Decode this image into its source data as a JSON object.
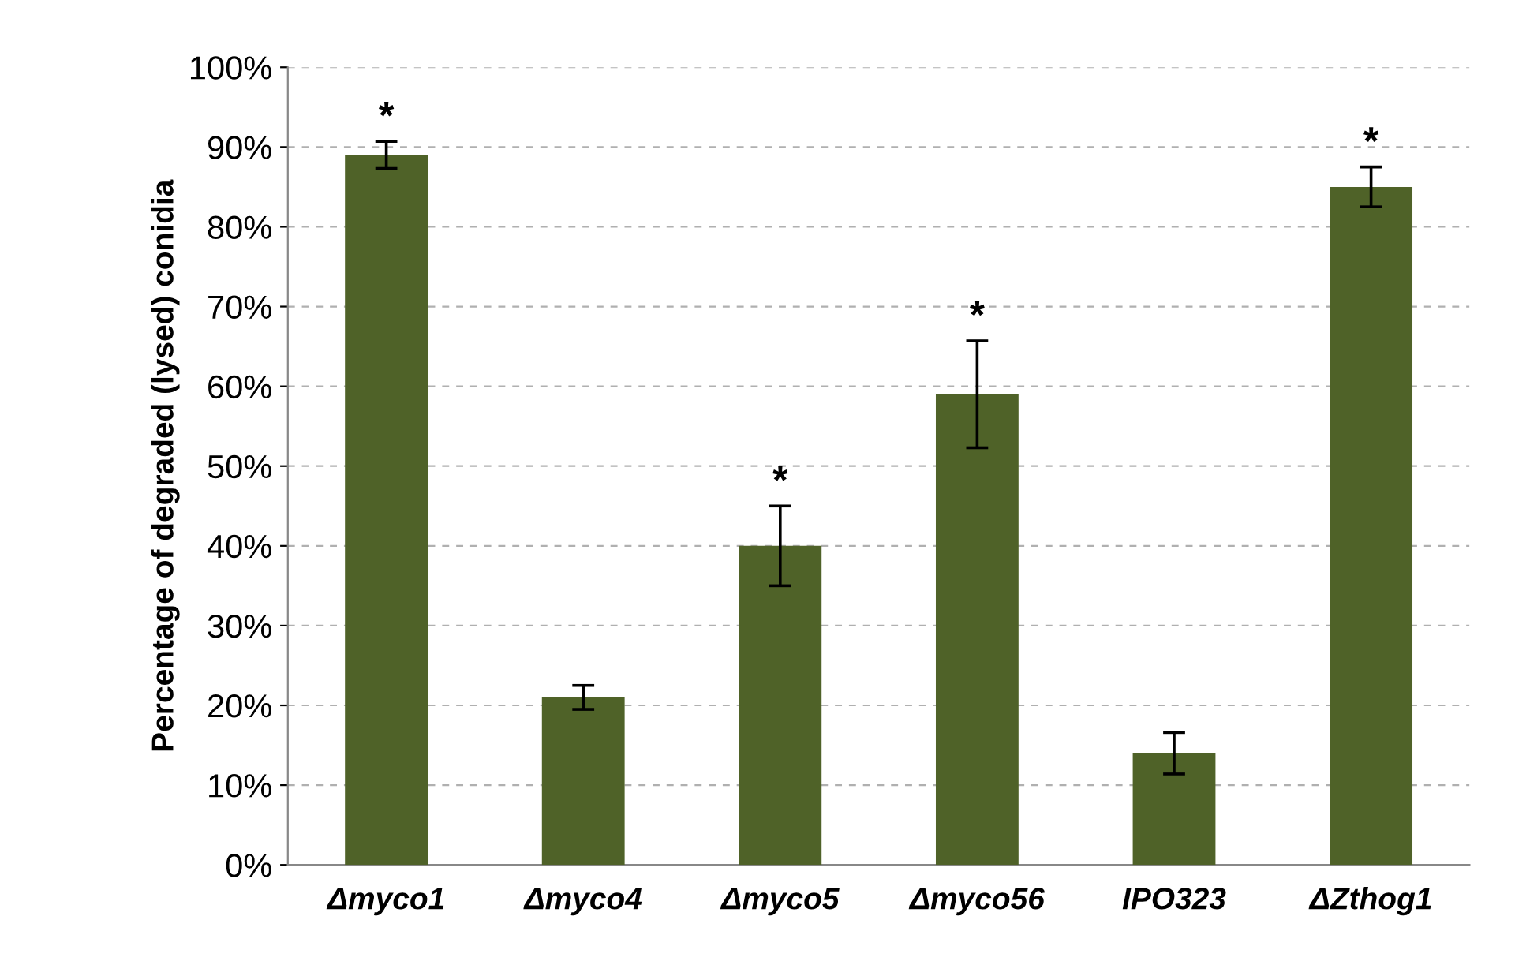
{
  "chart_data": {
    "type": "bar",
    "ylabel": "Percentage of degraded (lysed) conidia",
    "categories": [
      "Δmyco1",
      "Δmyco4",
      "Δmyco5",
      "Δmyco56",
      "IPO323",
      "ΔZthog1"
    ],
    "values": [
      89,
      21,
      40,
      59,
      14,
      85
    ],
    "errors": [
      1.7,
      1.5,
      5,
      6.7,
      2.6,
      2.5
    ],
    "color": "#4f6228",
    "ylim": [
      0,
      100
    ],
    "yticks": [
      {
        "value": 0,
        "label": "0%"
      },
      {
        "value": 10,
        "label": "10%"
      },
      {
        "value": 20,
        "label": "20%"
      },
      {
        "value": 30,
        "label": "30%"
      },
      {
        "value": 40,
        "label": "40%"
      },
      {
        "value": 50,
        "label": "50%"
      },
      {
        "value": 60,
        "label": "60%"
      },
      {
        "value": 70,
        "label": "70%"
      },
      {
        "value": 80,
        "label": "80%"
      },
      {
        "value": 90,
        "label": "90%"
      },
      {
        "value": 100,
        "label": "100%"
      }
    ],
    "grid": "y",
    "annotations": [
      {
        "text": "*",
        "x": "Δmyco1",
        "y": 90.7
      },
      {
        "text": "*",
        "x": "Δmyco5",
        "y": 45
      },
      {
        "text": "*",
        "x": "Δmyco56",
        "y": 65.7
      },
      {
        "text": "*",
        "x": "ΔZthog1",
        "y": 87.5
      }
    ]
  }
}
